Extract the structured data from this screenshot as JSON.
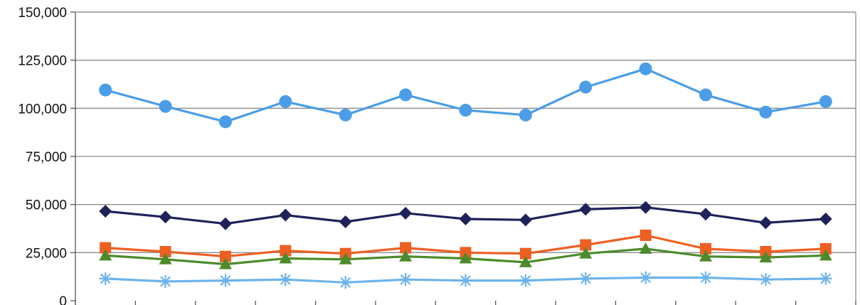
{
  "chart_data": {
    "type": "line",
    "ylim": [
      0,
      150000
    ],
    "y_ticks": [
      0,
      25000,
      50000,
      75000,
      100000,
      125000,
      150000
    ],
    "y_tick_labels": [
      "0",
      "25,000",
      "50,000",
      "75,000",
      "100,000",
      "125,000",
      "150,000"
    ],
    "grid": true,
    "legend": "none",
    "x": [
      1,
      2,
      3,
      4,
      5,
      6,
      7,
      8,
      9,
      10,
      11,
      12,
      13
    ],
    "series": [
      {
        "values": [
          109500,
          101000,
          93000,
          103500,
          96500,
          107000,
          99000,
          96500,
          111000,
          120500,
          107000,
          98000,
          103500
        ],
        "color": "#4a9de6",
        "marker": "circle"
      },
      {
        "values": [
          46500,
          43500,
          40000,
          44500,
          41000,
          45500,
          42500,
          42000,
          47500,
          48500,
          45000,
          40500,
          42500
        ],
        "color": "#1f2259",
        "marker": "diamond"
      },
      {
        "values": [
          27500,
          25500,
          23000,
          26000,
          24500,
          27500,
          25000,
          24500,
          29000,
          34000,
          27000,
          25500,
          27000
        ],
        "color": "#ee5f22",
        "marker": "square"
      },
      {
        "values": [
          23500,
          21500,
          19000,
          22000,
          21500,
          23000,
          22000,
          20000,
          24500,
          27000,
          23000,
          22500,
          23500
        ],
        "color": "#4c8a2b",
        "marker": "triangle"
      },
      {
        "values": [
          11500,
          10000,
          10500,
          11000,
          9500,
          11000,
          10500,
          10500,
          11500,
          12000,
          12000,
          11000,
          11500
        ],
        "color": "#6db3ea",
        "marker": "asterisk"
      }
    ]
  }
}
